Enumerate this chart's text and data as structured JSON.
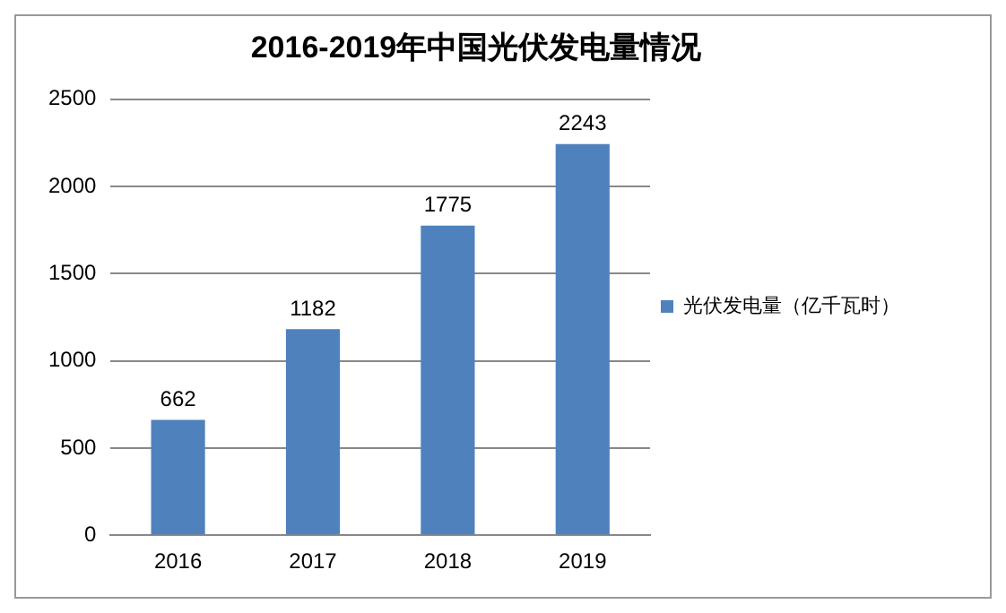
{
  "chart_data": {
    "type": "bar",
    "title": "2016-2019年中国光伏发电量情况",
    "categories": [
      "2016",
      "2017",
      "2018",
      "2019"
    ],
    "series": [
      {
        "name": "光伏发电量（亿千瓦时）",
        "color": "#4f81bd",
        "values": [
          662,
          1182,
          1775,
          2243
        ]
      }
    ],
    "ylim": [
      0,
      2500
    ],
    "yticks": [
      0,
      500,
      1000,
      1500,
      2000,
      2500
    ],
    "grid": "y",
    "legend": "right",
    "data_labels": true
  }
}
